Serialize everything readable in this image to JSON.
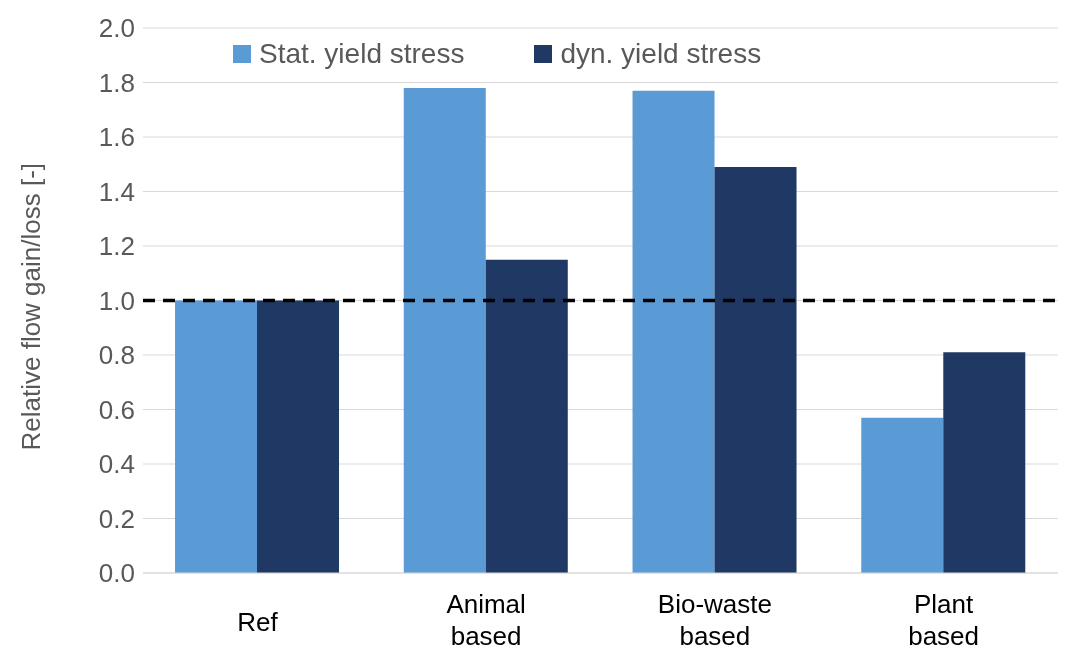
{
  "chart_data": {
    "type": "bar",
    "ylabel": "Relative flow gain/loss [-]",
    "categories": [
      "Ref",
      "Animal based",
      "Bio-waste based",
      "Plant based"
    ],
    "series": [
      {
        "name": "Stat. yield stress",
        "color": "#5b9bd5",
        "values": [
          1.0,
          1.78,
          1.77,
          0.57
        ]
      },
      {
        "name": "dyn. yield stress",
        "color": "#203864",
        "values": [
          1.0,
          1.15,
          1.49,
          0.81
        ]
      }
    ],
    "ylim": [
      0,
      2.0
    ],
    "yticks": [
      {
        "value": 0,
        "label": "0.0"
      },
      {
        "value": 0.2,
        "label": "0.2"
      },
      {
        "value": 0.4,
        "label": "0.4"
      },
      {
        "value": 0.6,
        "label": "0.6"
      },
      {
        "value": 0.8,
        "label": "0.8"
      },
      {
        "value": 1.0,
        "label": "1.0"
      },
      {
        "value": 1.2,
        "label": "1.2"
      },
      {
        "value": 1.4,
        "label": "1.4"
      },
      {
        "value": 1.6,
        "label": "1.6"
      },
      {
        "value": 1.8,
        "label": "1.8"
      },
      {
        "value": 2.0,
        "label": "2.0"
      }
    ],
    "grid": "y",
    "legend": "top",
    "ref_lines": [
      {
        "axis": "y",
        "value": 1.0,
        "color": "#000000",
        "line_style": "dashed"
      }
    ]
  }
}
